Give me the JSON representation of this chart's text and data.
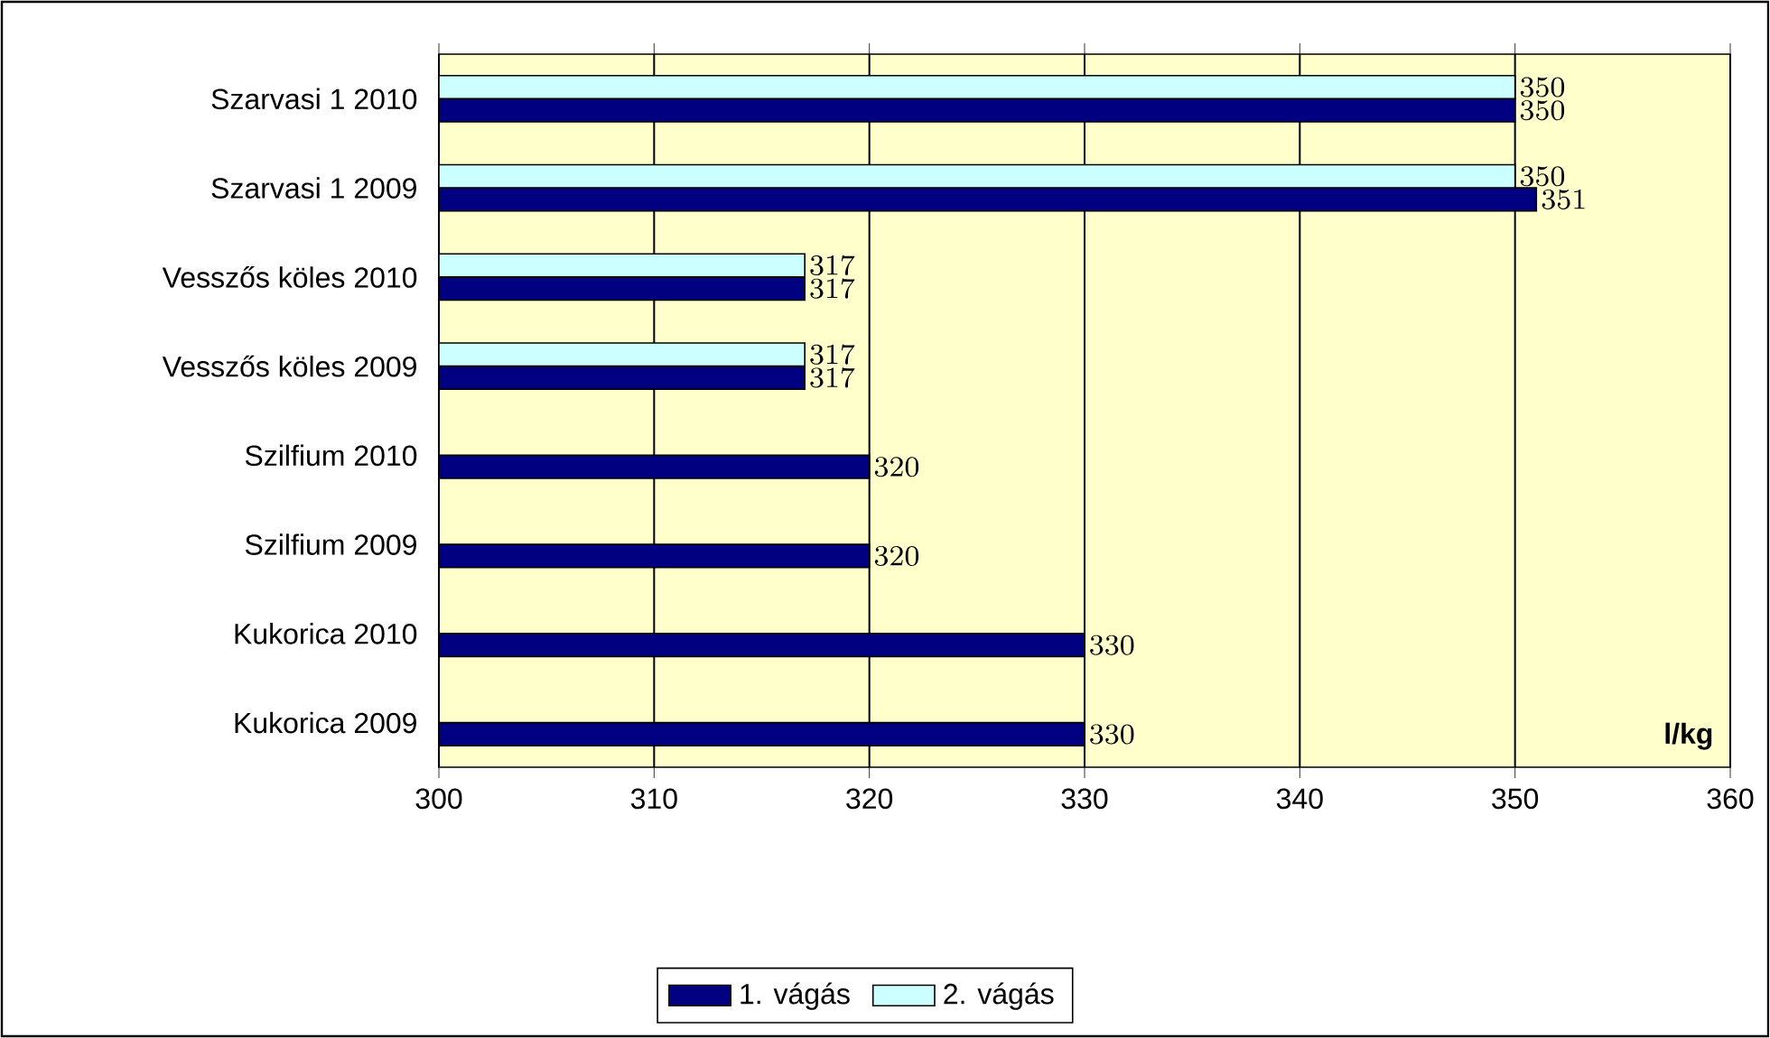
{
  "chart_data": {
    "type": "bar",
    "orientation": "horizontal",
    "categories": [
      "Szarvasi 1 2010",
      "Szarvasi 1 2009",
      "Vesszős köles 2010",
      "Vesszős köles 2009",
      "Szilfium 2010",
      "Szilfium 2009",
      "Kukorica 2010",
      "Kukorica 2009"
    ],
    "series": [
      {
        "name": "1. vágás",
        "color": "#000080",
        "values": [
          350,
          351,
          317,
          317,
          320,
          320,
          330,
          330
        ]
      },
      {
        "name": "2. vágás",
        "color": "#ccffff",
        "values": [
          350,
          350,
          317,
          317,
          null,
          null,
          null,
          null
        ]
      }
    ],
    "xlim": [
      300,
      360
    ],
    "xticks": [
      300,
      310,
      320,
      330,
      340,
      350,
      360
    ],
    "grid": "x",
    "legend": "bottom",
    "data_labels": true,
    "annotations": [
      "l/kg"
    ]
  }
}
